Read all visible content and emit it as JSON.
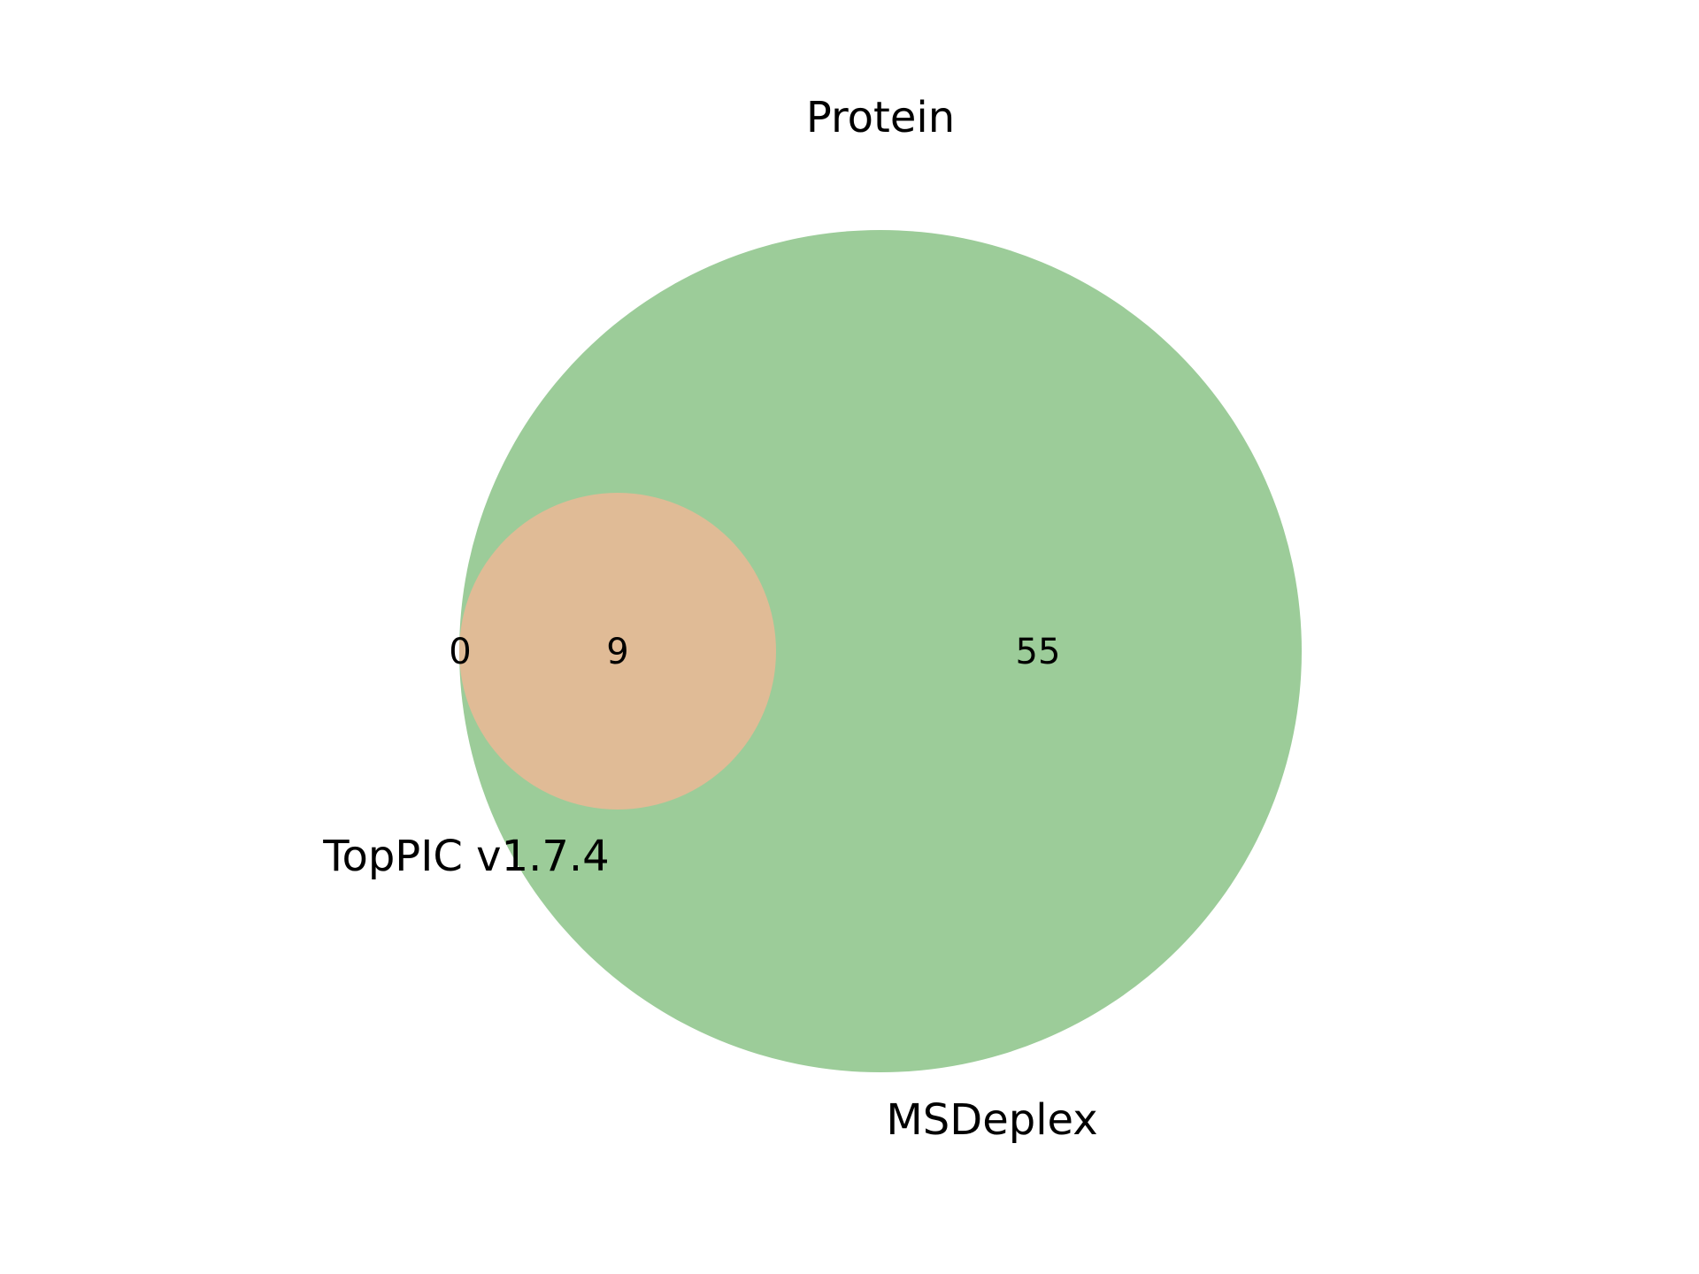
{
  "title": "Protein",
  "sets": [
    {
      "id": "toppic",
      "label": "TopPIC v1.7.4",
      "color": "#e0bb96"
    },
    {
      "id": "msdeplex",
      "label": "MSDeplex",
      "color": "#9ccc99"
    }
  ],
  "regions": {
    "toppic_only": "0",
    "both": "9",
    "msdeplex_only": "55"
  },
  "colors": {
    "background": "#ffffff",
    "text": "#000000"
  }
}
